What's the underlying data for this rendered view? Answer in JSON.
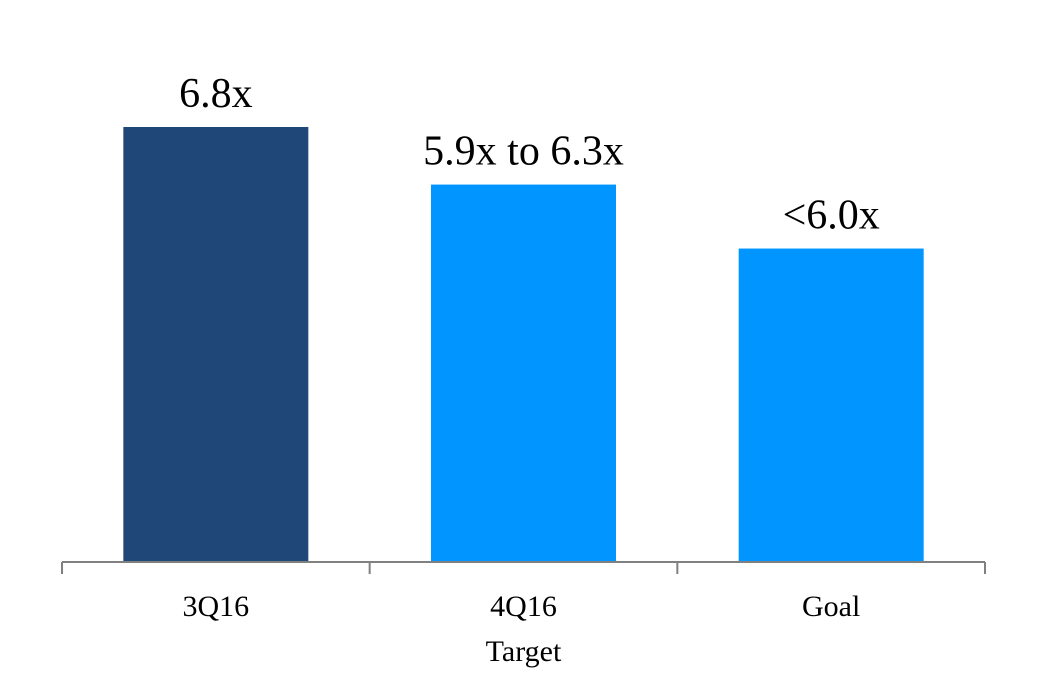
{
  "chart_data": {
    "type": "bar",
    "categories": [
      "3Q16",
      "4Q16",
      "Goal"
    ],
    "category_sublabels": [
      "",
      "Target",
      ""
    ],
    "values": [
      6.8,
      5.9,
      4.9
    ],
    "value_labels": [
      "6.8x",
      "5.9x to 6.3x",
      "<6.0x"
    ],
    "bar_colors": [
      "#1f4878",
      "#0095ff",
      "#0095ff"
    ],
    "axis_color": "#808080",
    "title": "",
    "xlabel": "",
    "ylabel": "",
    "ylim": [
      0,
      6.8
    ],
    "grid": false,
    "legend": "none"
  }
}
